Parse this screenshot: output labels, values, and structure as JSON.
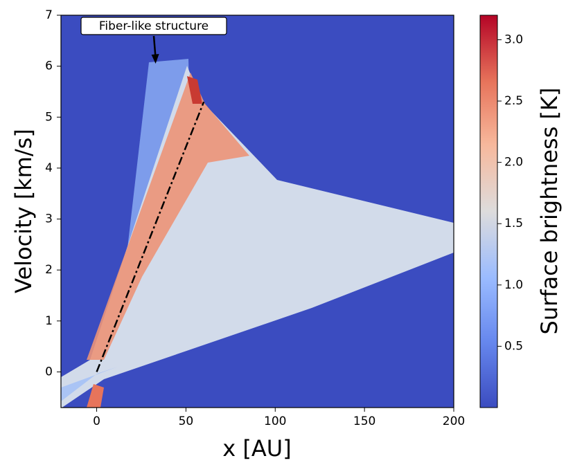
{
  "chart_data": {
    "type": "heatmap",
    "xlabel": "x [AU]",
    "ylabel": "Velocity [km/s]",
    "xlim": [
      -20,
      200
    ],
    "xticks": [
      0,
      50,
      100,
      150,
      200
    ],
    "ylim": [
      -0.7,
      7
    ],
    "yticks": [
      0,
      1,
      2,
      3,
      4,
      5,
      6,
      7
    ],
    "colorbar": {
      "label": "Surface brightness [K]",
      "lim": [
        0,
        3.2
      ],
      "ticks": [
        0.5,
        {
          "value": 1,
          "label": "1.0"
        },
        1.5,
        {
          "value": 2,
          "label": "2.0"
        },
        2.5,
        {
          "value": 3,
          "label": "3.0"
        }
      ]
    },
    "fit_line": {
      "x": [
        0,
        60
      ],
      "y": [
        0,
        5.3
      ],
      "color": "#000000"
    },
    "annotation": {
      "text": "Fiber-like structure",
      "x": 33,
      "y": 6.05
    }
  }
}
